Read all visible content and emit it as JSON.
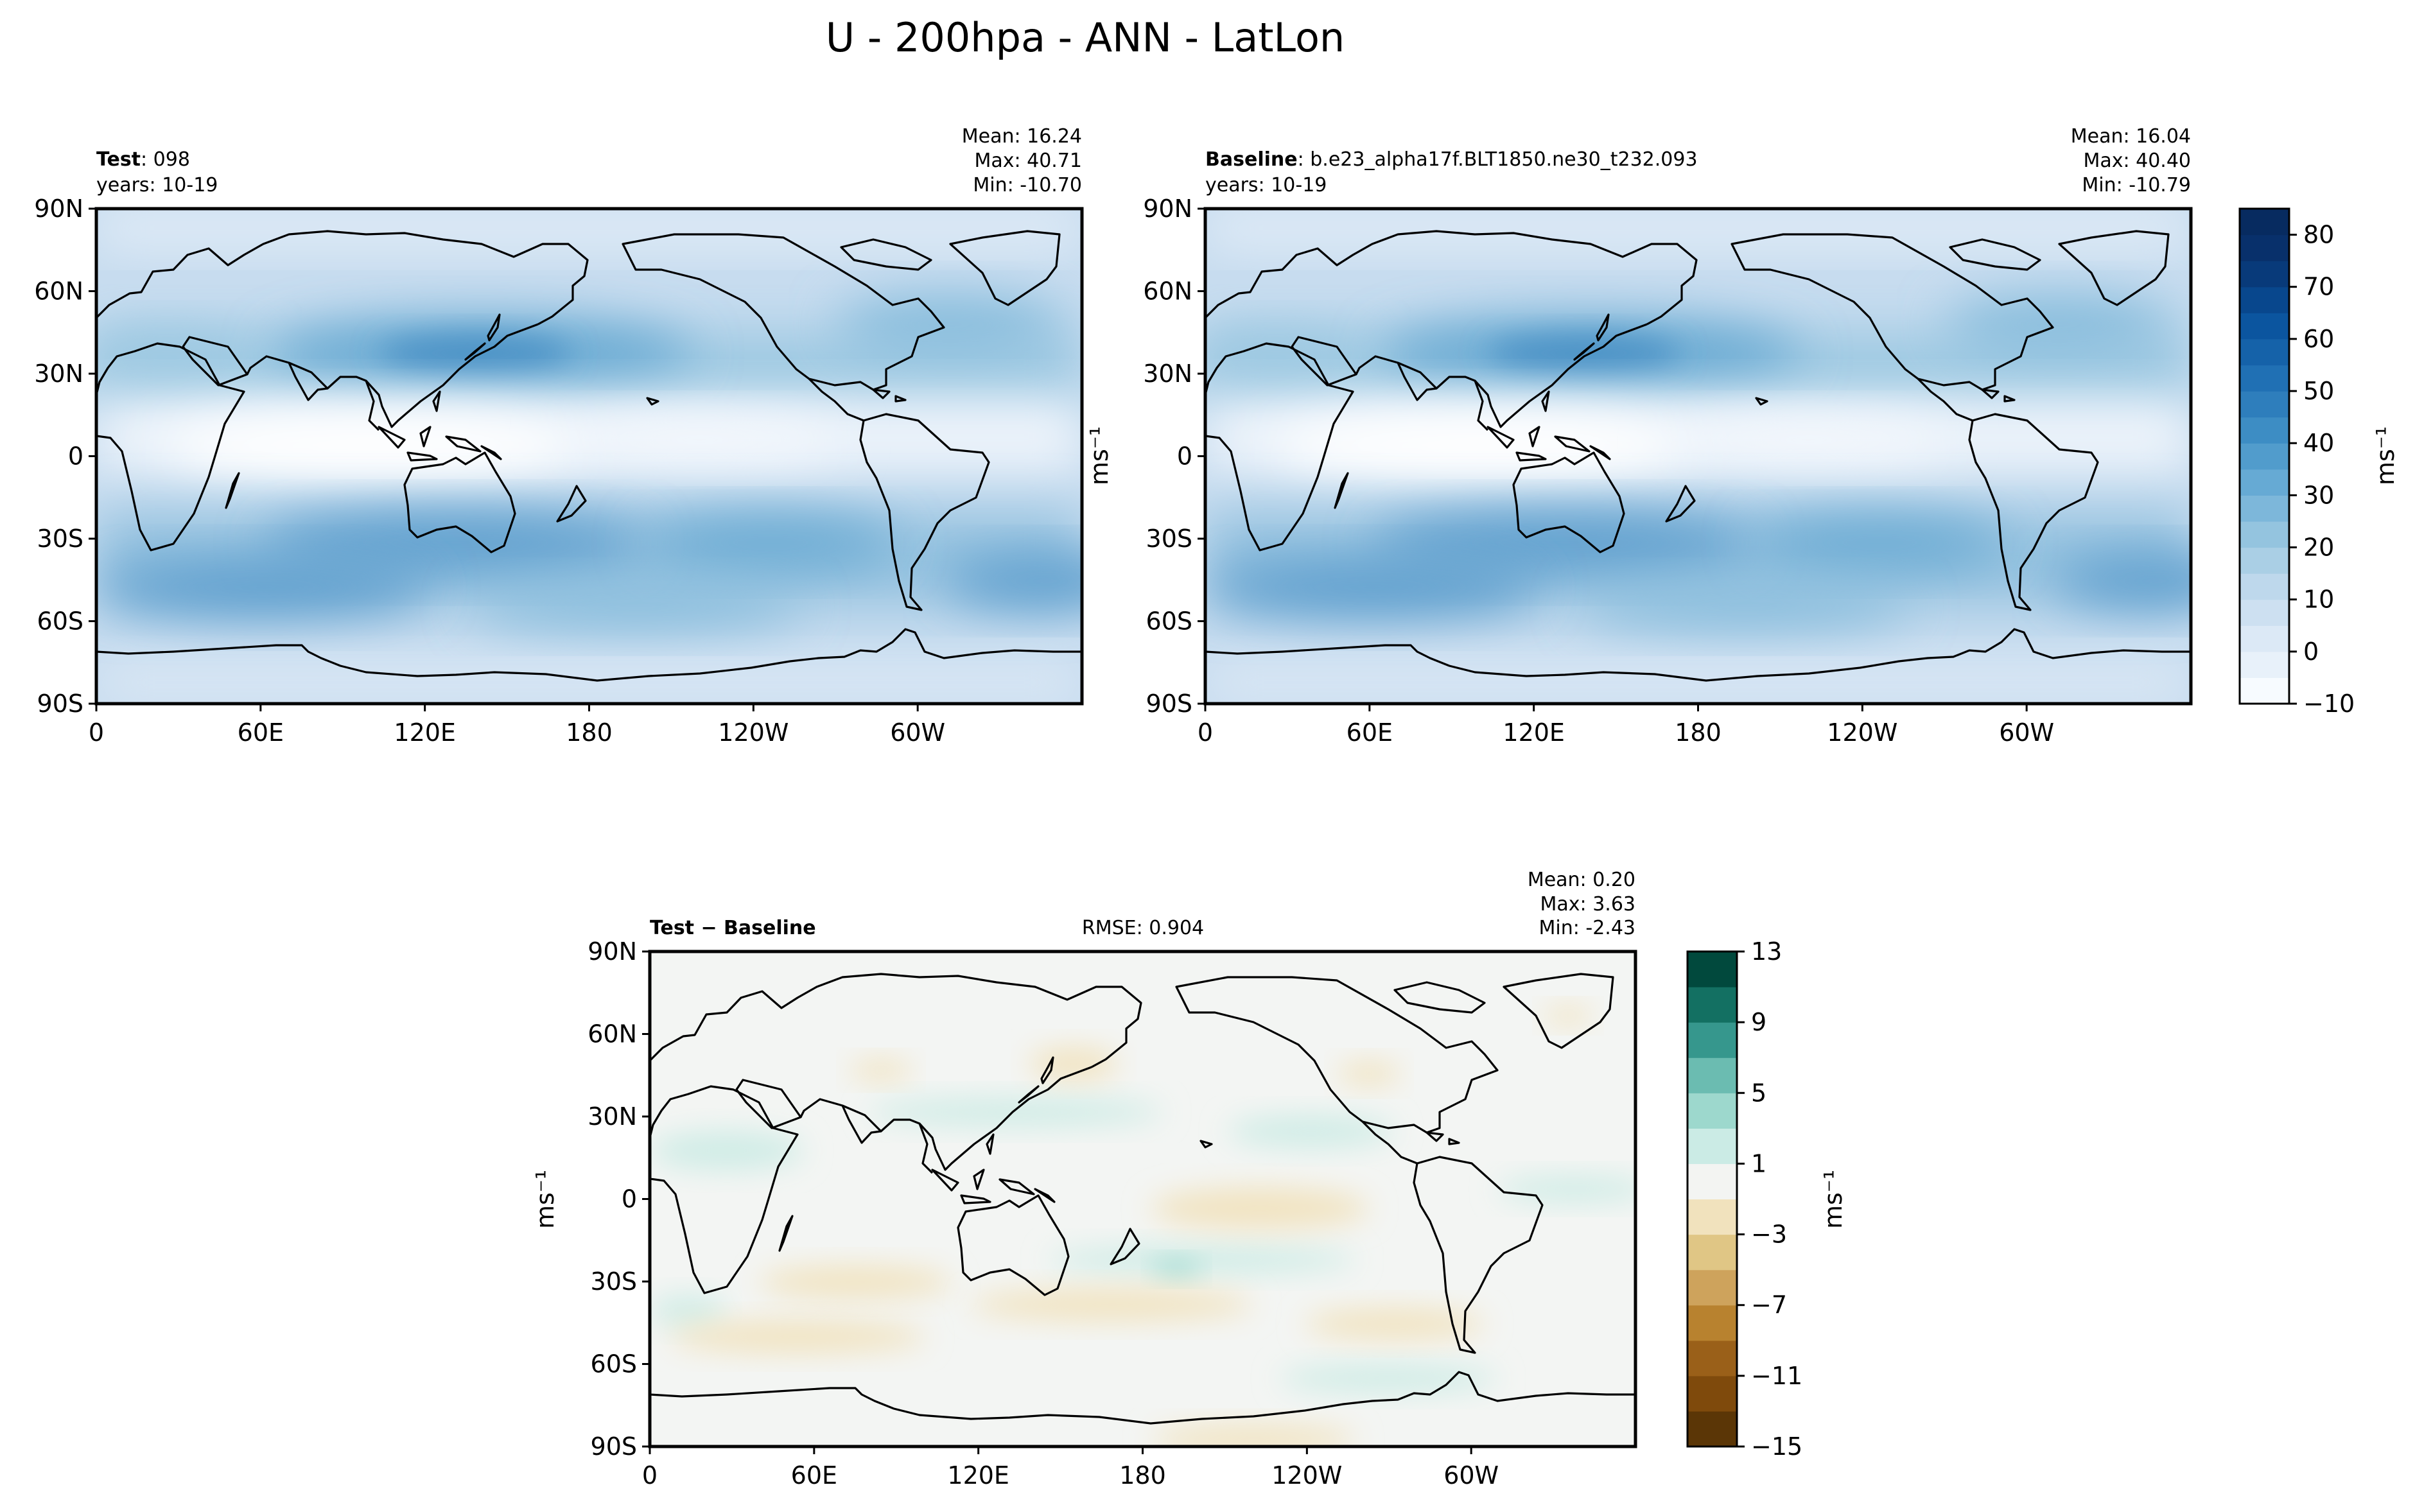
{
  "title": "U - 200hpa - ANN - LatLon",
  "panels": {
    "test": {
      "label_bold": "Test",
      "label_rest": ": 098",
      "years": "years: 10-19",
      "mean": "Mean: 16.24",
      "max": "Max: 40.71",
      "min": "Min: -10.70"
    },
    "baseline": {
      "label_bold": "Baseline",
      "label_rest": ": b.e23_alpha17f.BLT1850.ne30_t232.093",
      "years": "years: 10-19",
      "mean": "Mean: 16.04",
      "max": "Max: 40.40",
      "min": "Min: -10.79"
    },
    "diff": {
      "label": "Test − Baseline",
      "rmse": "RMSE: 0.904",
      "mean": "Mean:  0.20",
      "max": "Max:  3.63",
      "min": "Min: -2.43"
    }
  },
  "axes": {
    "lat_ticks": [
      "90N",
      "60N",
      "30N",
      "0",
      "30S",
      "60S",
      "90S"
    ],
    "lon_ticks": [
      "0",
      "60E",
      "120E",
      "180",
      "120W",
      "60W"
    ],
    "unit_label": "ms⁻¹"
  },
  "colorbar_main": {
    "ticks": [
      "80",
      "70",
      "60",
      "50",
      "40",
      "30",
      "20",
      "10",
      "0",
      "−10"
    ],
    "levels": [
      -10,
      -5,
      0,
      5,
      10,
      15,
      20,
      25,
      30,
      35,
      40,
      45,
      50,
      55,
      60,
      65,
      70,
      75,
      80,
      85
    ],
    "colors": [
      "#f7fbff",
      "#e8f1fa",
      "#dce9f6",
      "#cde0f1",
      "#bed8ec",
      "#aacfe5",
      "#94c4df",
      "#7db7da",
      "#66aad4",
      "#519ccc",
      "#3d8dc4",
      "#2e7ebc",
      "#2070b4",
      "#1562a9",
      "#0b559f",
      "#08478d",
      "#083a7a",
      "#08306b",
      "#072b60"
    ]
  },
  "colorbar_diff": {
    "ticks": [
      "13",
      "9",
      "5",
      "1",
      "−3",
      "−7",
      "−11",
      "−15"
    ],
    "levels": [
      -15,
      -13,
      -11,
      -9,
      -7,
      -5,
      -3,
      -1,
      1,
      3,
      5,
      7,
      9,
      11,
      13
    ],
    "colors": [
      "#5b3606",
      "#7f4a0c",
      "#9a6019",
      "#b8822f",
      "#cea35c",
      "#e0c685",
      "#f1e2bd",
      "#f3f4f2",
      "#cbebe5",
      "#9dd8cd",
      "#6bbcb1",
      "#36978d",
      "#137062",
      "#01493d"
    ]
  },
  "chart_data": [
    {
      "type": "map",
      "name": "Test",
      "variable": "U",
      "level": "200hpa",
      "season": "ANN",
      "mean": 16.24,
      "max": 40.71,
      "min": -10.7,
      "lat_range": [
        -90,
        90
      ],
      "lon_range": [
        0,
        360
      ]
    },
    {
      "type": "map",
      "name": "Baseline",
      "mean": 16.04,
      "max": 40.4,
      "min": -10.79,
      "lat_range": [
        -90,
        90
      ],
      "lon_range": [
        0,
        360
      ]
    },
    {
      "type": "map",
      "name": "Test - Baseline",
      "rmse": 0.904,
      "mean": 0.2,
      "max": 3.63,
      "min": -2.43,
      "lat_range": [
        -90,
        90
      ],
      "lon_range": [
        0,
        360
      ]
    }
  ]
}
